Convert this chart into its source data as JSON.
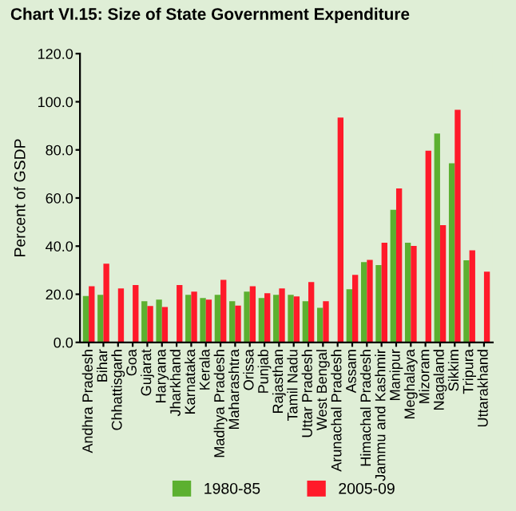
{
  "chart_data": {
    "type": "bar",
    "title": "Chart VI.15: Size of State Government Expenditure",
    "ylabel": "Percent of GSDP",
    "categories": [
      "Andhra Pradesh",
      "Bihar",
      "Chhattisgarh",
      "Goa",
      "Gujarat",
      "Haryana",
      "Jharkhand",
      "Karnataka",
      "Kerala",
      "Madhya Pradesh",
      "Maharashtra",
      "Orissa",
      "Punjab",
      "Rajasthan",
      "Tamil Nadu",
      "Uttar Pradesh",
      "West Bengal",
      "Arunachal Pradesh",
      "Assam",
      "Himachal Pradesh",
      "Jammu and Kashmir",
      "Manipur",
      "Meghalaya",
      "Mizoram",
      "Nagaland",
      "Sikkim",
      "Tripura",
      "Uttarakhand"
    ],
    "series": [
      {
        "name": "1980-85",
        "color": "#5cb030",
        "values": [
          19.3,
          19.8,
          null,
          null,
          17.1,
          17.8,
          null,
          19.8,
          18.4,
          19.8,
          17.1,
          21.1,
          18.4,
          19.8,
          19.8,
          17.1,
          14.4,
          null,
          22.1,
          33.4,
          32.1,
          55.1,
          41.4,
          null,
          86.8,
          74.4,
          34.1,
          null
        ]
      },
      {
        "name": "2005-09",
        "color": "#ff1a2a",
        "values": [
          23.3,
          32.7,
          22.4,
          23.8,
          15.1,
          14.7,
          23.8,
          21.1,
          17.8,
          26.0,
          15.3,
          23.3,
          20.4,
          22.4,
          19.1,
          25.1,
          17.1,
          93.4,
          28.1,
          34.3,
          41.4,
          64.0,
          40.1,
          79.7,
          48.7,
          96.7,
          38.3,
          29.4
        ]
      }
    ],
    "ylim": [
      0,
      120
    ],
    "yticks": [
      {
        "value": 0,
        "label": "0.0"
      },
      {
        "value": 20,
        "label": "20.0"
      },
      {
        "value": 40,
        "label": "40.0"
      },
      {
        "value": 60,
        "label": "60.0"
      },
      {
        "value": 80,
        "label": "80.0"
      },
      {
        "value": 100,
        "label": "100.0"
      },
      {
        "value": 120,
        "label": "120.0"
      }
    ],
    "legend": "bottom",
    "grid": false
  }
}
